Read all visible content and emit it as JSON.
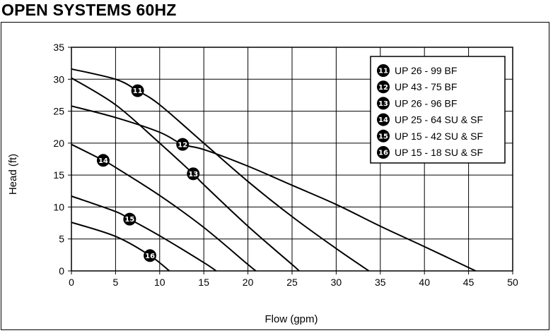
{
  "page": {
    "heading": "OPEN SYSTEMS 60HZ"
  },
  "chart_data": {
    "type": "line",
    "title": "OPEN SYSTEMS 60HZ",
    "xlabel": "Flow (gpm)",
    "ylabel": "Head (ft)",
    "xlim": [
      0,
      50
    ],
    "ylim": [
      0,
      35
    ],
    "xticks": [
      0,
      5,
      10,
      15,
      20,
      25,
      30,
      35,
      40,
      45,
      50
    ],
    "yticks": [
      0,
      5,
      10,
      15,
      20,
      25,
      30,
      35
    ],
    "grid": true,
    "legend_position": "top-right",
    "series": [
      {
        "id": "11",
        "name": "UP 26 - 99 BF",
        "x": [
          0,
          5,
          7.5,
          10,
          15,
          20,
          25,
          30,
          33.7
        ],
        "y": [
          31.6,
          30.0,
          28.2,
          26.0,
          20.0,
          14.0,
          8.5,
          3.5,
          0
        ]
      },
      {
        "id": "12",
        "name": "UP 43 - 75 BF",
        "x": [
          0,
          5,
          10,
          12.6,
          15,
          20,
          25,
          30,
          35,
          40,
          45.8
        ],
        "y": [
          25.8,
          24.0,
          21.7,
          19.8,
          19.0,
          16.4,
          13.4,
          10.4,
          7.0,
          3.8,
          0
        ]
      },
      {
        "id": "13",
        "name": "UP 26 - 96 BF",
        "x": [
          0,
          5,
          10,
          13.8,
          15,
          20,
          25,
          25.8
        ],
        "y": [
          30.2,
          26.0,
          20.0,
          15.2,
          13.5,
          7.0,
          1.0,
          0
        ]
      },
      {
        "id": "14",
        "name": "UP 25 - 64 SU & SF",
        "x": [
          0,
          3.6,
          5,
          10,
          15,
          20,
          20.9
        ],
        "y": [
          19.8,
          17.3,
          16.2,
          11.8,
          6.8,
          1.0,
          0
        ]
      },
      {
        "id": "15",
        "name": "UP 15 - 42 SU & SF",
        "x": [
          0,
          5,
          6.6,
          10,
          15,
          16.4
        ],
        "y": [
          11.7,
          9.3,
          8.1,
          5.5,
          1.3,
          0
        ]
      },
      {
        "id": "16",
        "name": "UP 15 - 18 SU & SF",
        "x": [
          0,
          5,
          8.9,
          11.1
        ],
        "y": [
          7.6,
          5.4,
          2.4,
          0
        ]
      }
    ]
  }
}
